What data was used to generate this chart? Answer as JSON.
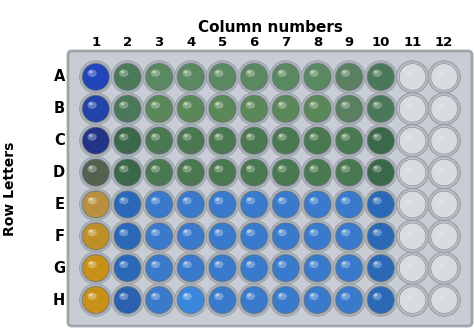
{
  "title": "Column numbers",
  "ylabel": "Row Letters",
  "rows": [
    "A",
    "B",
    "C",
    "D",
    "E",
    "F",
    "G",
    "H"
  ],
  "cols": [
    "1",
    "2",
    "3",
    "4",
    "5",
    "6",
    "7",
    "8",
    "9",
    "10",
    "11",
    "12"
  ],
  "well_colors": [
    [
      "#2244bb",
      "#4a7a58",
      "#5a8860",
      "#5a8860",
      "#5a8860",
      "#5a8860",
      "#5a8860",
      "#5a8860",
      "#5a8060",
      "#4a7858",
      "#d0d5da",
      "#d0d5da"
    ],
    [
      "#2244aa",
      "#4a7858",
      "#5a8858",
      "#5a8858",
      "#5a8858",
      "#5a8858",
      "#5a8858",
      "#5a8858",
      "#5a8060",
      "#4a7858",
      "#d0d5da",
      "#d0d5da"
    ],
    [
      "#223388",
      "#3a6848",
      "#4a7850",
      "#4a7850",
      "#4a7850",
      "#4a7850",
      "#4a7850",
      "#4a7850",
      "#4a7850",
      "#3a6848",
      "#d0d5da",
      "#d0d5da"
    ],
    [
      "#556050",
      "#3a6848",
      "#4a7850",
      "#4a7850",
      "#4a7850",
      "#4a7850",
      "#4a7850",
      "#4a7850",
      "#4a7850",
      "#3a6848",
      "#d0d5da",
      "#d0d5da"
    ],
    [
      "#b89040",
      "#2a68b8",
      "#3a7acc",
      "#3a7acc",
      "#3a7acc",
      "#3a7acc",
      "#3a7acc",
      "#3a7acc",
      "#3a7acc",
      "#2a68b8",
      "#d0d5da",
      "#d0d5da"
    ],
    [
      "#c09028",
      "#2a68b8",
      "#3a7acc",
      "#3a7acc",
      "#3a7acc",
      "#3a7acc",
      "#3a7acc",
      "#3a7acc",
      "#3a7acc",
      "#2a68b8",
      "#d0d5da",
      "#d0d5da"
    ],
    [
      "#c89018",
      "#2a68b8",
      "#3a7acc",
      "#3a7acc",
      "#3a7acc",
      "#3a7acc",
      "#3a7acc",
      "#3a7acc",
      "#3a7acc",
      "#2a68b8",
      "#d0d5da",
      "#d0d5da"
    ],
    [
      "#c89018",
      "#2a60b0",
      "#3a7acc",
      "#3a88dd",
      "#3a7acc",
      "#3a7acc",
      "#3a7acc",
      "#3a7acc",
      "#3a7acc",
      "#2a68b8",
      "#d0d5da",
      "#d0d5da"
    ]
  ],
  "plate_bg": "#c8cdd5",
  "plate_edge": "#a0a5aa",
  "well_border_color": "#888893",
  "well_socket_color": "#b0b5bc",
  "empty_color": "#d5dade",
  "figsize": [
    4.74,
    3.33
  ],
  "dpi": 100,
  "title_fontsize": 11,
  "label_fontsize": 10,
  "tick_fontsize": 9.5,
  "row_label_fontsize": 10.5
}
